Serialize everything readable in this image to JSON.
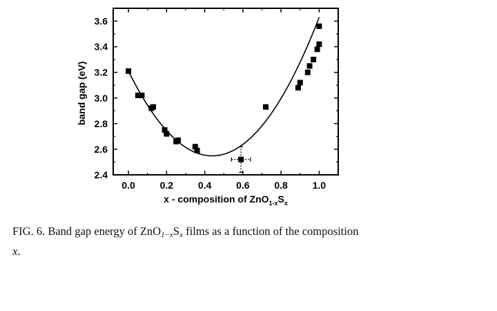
{
  "chart_data": {
    "type": "scatter",
    "xlabel": {
      "prefix": "x - composition of ZnO",
      "sub1": "1-x",
      "mid": "S",
      "sub2": "x"
    },
    "ylabel": "band gap (eV)",
    "xlim": [
      -0.08,
      1.1
    ],
    "ylim": [
      2.4,
      3.7
    ],
    "xticks": [
      "0.0",
      "0.2",
      "0.4",
      "0.6",
      "0.8",
      "1.0"
    ],
    "yticks": [
      "2.4",
      "2.6",
      "2.8",
      "3.0",
      "3.2",
      "3.4",
      "3.6"
    ],
    "series": [
      {
        "marker": "square",
        "points": [
          {
            "x": 0.0,
            "y": 3.21
          },
          {
            "x": 0.05,
            "y": 3.02
          },
          {
            "x": 0.07,
            "y": 3.02
          },
          {
            "x": 0.12,
            "y": 2.92
          },
          {
            "x": 0.13,
            "y": 2.93
          },
          {
            "x": 0.19,
            "y": 2.75
          },
          {
            "x": 0.2,
            "y": 2.72
          },
          {
            "x": 0.25,
            "y": 2.66
          },
          {
            "x": 0.26,
            "y": 2.67
          },
          {
            "x": 0.35,
            "y": 2.62
          },
          {
            "x": 0.36,
            "y": 2.59
          },
          {
            "x": 0.59,
            "y": 2.52,
            "xerr": 0.05,
            "yerr": 0.1
          },
          {
            "x": 0.72,
            "y": 2.93
          },
          {
            "x": 0.89,
            "y": 3.08
          },
          {
            "x": 0.9,
            "y": 3.12
          },
          {
            "x": 0.94,
            "y": 3.2
          },
          {
            "x": 0.95,
            "y": 3.25
          },
          {
            "x": 0.97,
            "y": 3.3
          },
          {
            "x": 0.99,
            "y": 3.38
          },
          {
            "x": 1.0,
            "y": 3.42
          },
          {
            "x": 1.0,
            "y": 3.56
          }
        ]
      }
    ],
    "fit_curve": {
      "type": "quadratic",
      "x_range": [
        0.0,
        1.0
      ],
      "points": [
        {
          "x": 0.0,
          "y": 3.21
        },
        {
          "x": 0.46,
          "y": 2.55
        },
        {
          "x": 1.0,
          "y": 3.63
        }
      ]
    },
    "grid": false,
    "legend": "none"
  },
  "caption": {
    "fig_label": "FIG. 6.",
    "text_before": "Band gap energy of ZnO",
    "sub1": "1−x",
    "mid": "S",
    "sub2": "x",
    "text_after": " films as a function of the composition",
    "last_line": "x",
    "end": "."
  }
}
